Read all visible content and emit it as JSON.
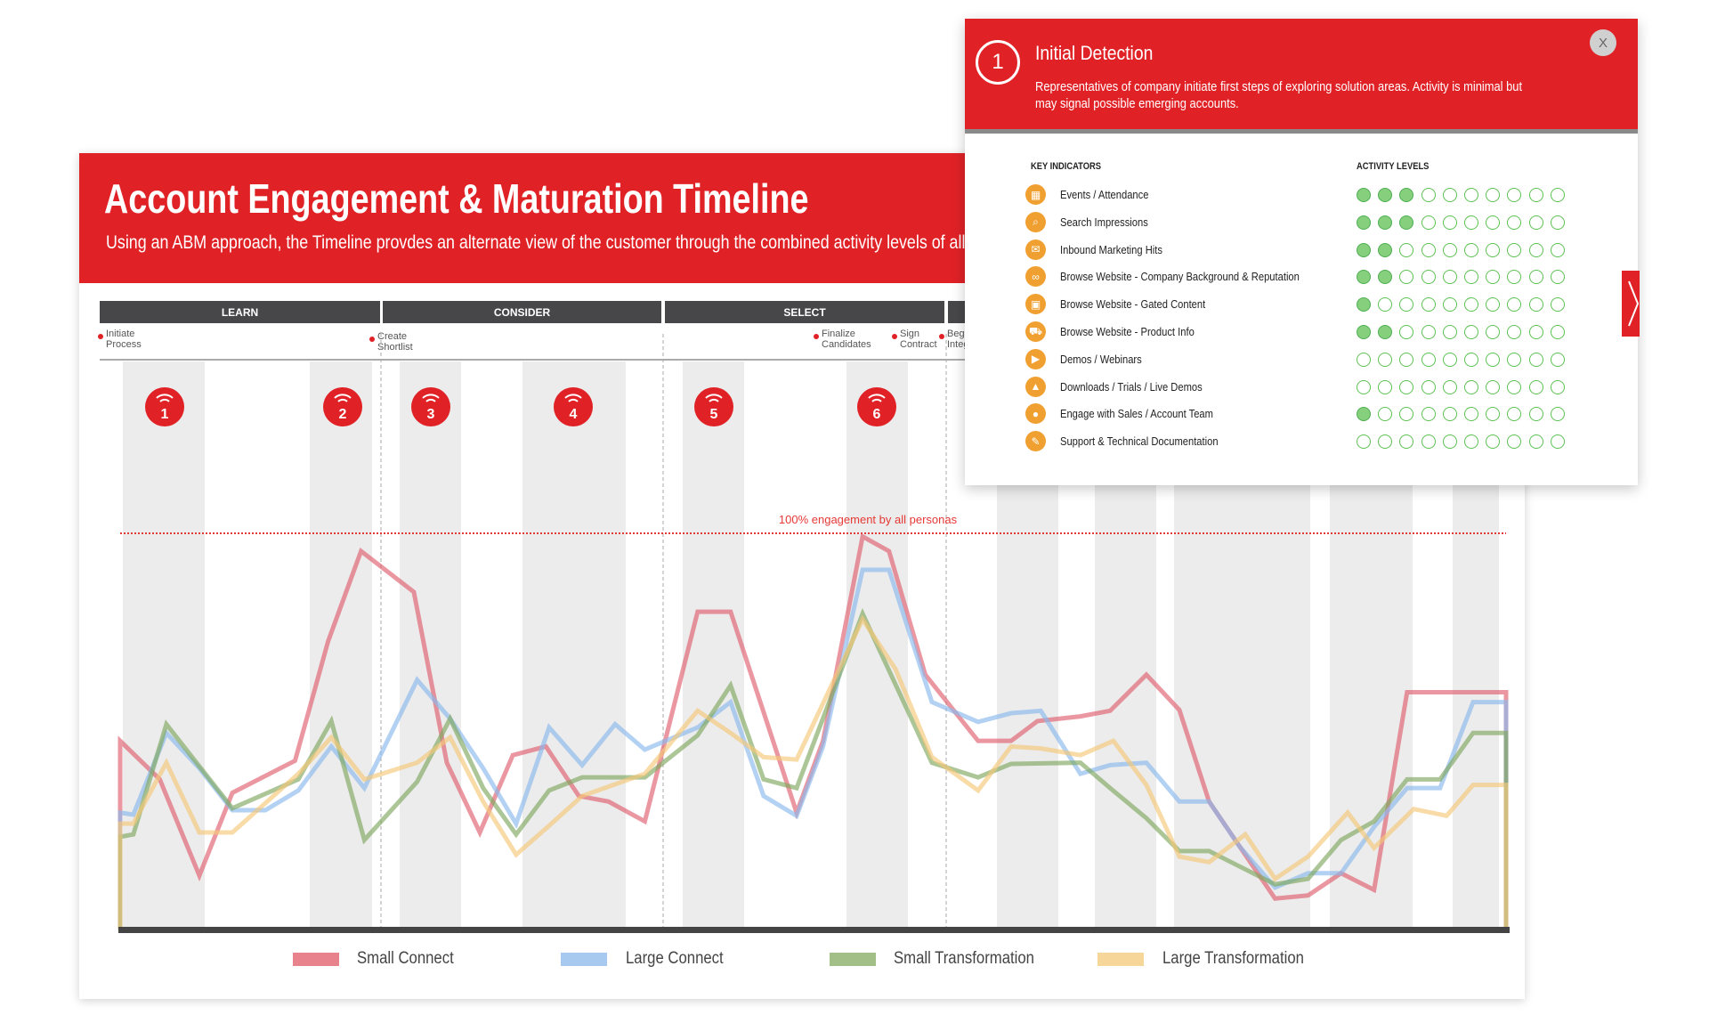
{
  "header": {
    "title": "Account Engagement & Maturation Timeline",
    "subtitle": "Using an ABM approach, the Timeline provdes an alternate view of the customer through the combined activity levels of all te"
  },
  "phases": [
    "LEARN",
    "CONSIDER",
    "SELECT",
    ""
  ],
  "milestones": [
    {
      "line1": "Initiate",
      "line2": "Process"
    },
    {
      "line1": "Create",
      "line2": "Shortlist"
    },
    {
      "line1": "Finalize",
      "line2": "Candidates"
    },
    {
      "line1": "Sign",
      "line2": "Contract"
    },
    {
      "line1": "Begin",
      "line2": "Integ"
    }
  ],
  "markers": [
    "1",
    "2",
    "3",
    "4",
    "5",
    "6"
  ],
  "chart_data": {
    "type": "line",
    "title": "",
    "xlabel": "",
    "ylabel": "",
    "ylim": [
      0,
      100
    ],
    "reference_line": {
      "value": 100,
      "label": "100% engagement by all personas",
      "color": "#e53935"
    },
    "grid": false,
    "legend": "bottom",
    "series": [
      {
        "name": "Small Connect",
        "color": "#e0606e",
        "points": [
          [
            0,
            0
          ],
          [
            0,
            47.6
          ],
          [
            1.2,
            37.9
          ],
          [
            2.4,
            13.6
          ],
          [
            3.4,
            34.5
          ],
          [
            5.3,
            42.6
          ],
          [
            6.3,
            72.7
          ],
          [
            7.3,
            95.5
          ],
          [
            8.9,
            85.2
          ],
          [
            9.9,
            42.1
          ],
          [
            10.9,
            24.5
          ],
          [
            11.9,
            44
          ],
          [
            12.9,
            46.2
          ],
          [
            13.9,
            33.7
          ],
          [
            14.8,
            32.3
          ],
          [
            15.9,
            27.3
          ],
          [
            17.5,
            80.2
          ],
          [
            18.5,
            80.2
          ],
          [
            20.5,
            29.5
          ],
          [
            21.3,
            47.6
          ],
          [
            22.5,
            99.2
          ],
          [
            23.3,
            95.5
          ],
          [
            24.4,
            64.3
          ],
          [
            26,
            47.6
          ],
          [
            27,
            47.6
          ],
          [
            27.8,
            52.6
          ],
          [
            29.1,
            53.8
          ],
          [
            30,
            55.2
          ],
          [
            31.1,
            64.3
          ],
          [
            32.1,
            55.4
          ],
          [
            33,
            32.3
          ],
          [
            35,
            7.8
          ],
          [
            36,
            8.6
          ],
          [
            37,
            14.2
          ],
          [
            38,
            10
          ],
          [
            39,
            59.9
          ],
          [
            42,
            59.9
          ],
          [
            42,
            0
          ]
        ]
      },
      {
        "name": "Large Connect",
        "color": "#8ab8ec",
        "points": [
          [
            0,
            0
          ],
          [
            0,
            29.5
          ],
          [
            0.4,
            29
          ],
          [
            1.4,
            49.6
          ],
          [
            2.4,
            40.7
          ],
          [
            3.4,
            30.1
          ],
          [
            4.4,
            30.1
          ],
          [
            5.4,
            35.1
          ],
          [
            6.4,
            46.2
          ],
          [
            7.4,
            35.7
          ],
          [
            9,
            63
          ],
          [
            10,
            53.2
          ],
          [
            11,
            40.7
          ],
          [
            12,
            26.7
          ],
          [
            13,
            51
          ],
          [
            14,
            41.5
          ],
          [
            15,
            51.8
          ],
          [
            15.9,
            45.4
          ],
          [
            17.5,
            51
          ],
          [
            18.5,
            57.4
          ],
          [
            19.5,
            33.7
          ],
          [
            20.5,
            28.7
          ],
          [
            21.3,
            46.2
          ],
          [
            22.5,
            90.8
          ],
          [
            23.3,
            90.8
          ],
          [
            24.6,
            57.4
          ],
          [
            26,
            52.4
          ],
          [
            27,
            54.6
          ],
          [
            27.9,
            55.2
          ],
          [
            29.1,
            39.3
          ],
          [
            30,
            41.5
          ],
          [
            31.1,
            42.1
          ],
          [
            32.1,
            32.3
          ],
          [
            33,
            32.3
          ],
          [
            33.9,
            21.2
          ],
          [
            35,
            10.6
          ],
          [
            36,
            14.2
          ],
          [
            37,
            14.2
          ],
          [
            38,
            25.9
          ],
          [
            39,
            35.7
          ],
          [
            40,
            35.7
          ],
          [
            41,
            57.4
          ],
          [
            42,
            57.4
          ],
          [
            42,
            0
          ]
        ]
      },
      {
        "name": "Small Transformation",
        "color": "#7fa860",
        "points": [
          [
            0,
            0
          ],
          [
            0,
            23.4
          ],
          [
            0.4,
            24
          ],
          [
            1.4,
            51.8
          ],
          [
            2.4,
            41.2
          ],
          [
            3.4,
            30.6
          ],
          [
            5.4,
            37.9
          ],
          [
            6.4,
            52.6
          ],
          [
            7.4,
            22.6
          ],
          [
            9,
            37.3
          ],
          [
            10,
            53.2
          ],
          [
            11,
            35.7
          ],
          [
            12,
            24
          ],
          [
            13,
            35.1
          ],
          [
            14,
            38.4
          ],
          [
            15.9,
            38.4
          ],
          [
            17.5,
            49
          ],
          [
            18.5,
            61.6
          ],
          [
            19.5,
            37.9
          ],
          [
            20.5,
            35.7
          ],
          [
            22.5,
            79.7
          ],
          [
            24.6,
            42.1
          ],
          [
            26,
            38.4
          ],
          [
            27,
            41.8
          ],
          [
            29.1,
            42.1
          ],
          [
            30,
            35.7
          ],
          [
            31.1,
            28.1
          ],
          [
            32.1,
            19.8
          ],
          [
            33,
            19.8
          ],
          [
            35,
            11.4
          ],
          [
            36,
            12.8
          ],
          [
            37,
            22.6
          ],
          [
            38,
            27.3
          ],
          [
            39,
            37.9
          ],
          [
            40,
            37.9
          ],
          [
            41,
            49.6
          ],
          [
            42,
            49.6
          ],
          [
            42,
            0
          ]
        ]
      },
      {
        "name": "Large Transformation",
        "color": "#f5c878",
        "points": [
          [
            0,
            0
          ],
          [
            0,
            26.7
          ],
          [
            0.4,
            26.7
          ],
          [
            1.4,
            42.1
          ],
          [
            2.4,
            24.5
          ],
          [
            3.4,
            24.5
          ],
          [
            5.4,
            39.3
          ],
          [
            6.4,
            48.5
          ],
          [
            7.4,
            37.9
          ],
          [
            9,
            42.1
          ],
          [
            10,
            48.5
          ],
          [
            11,
            32.3
          ],
          [
            12,
            18.9
          ],
          [
            13,
            26.2
          ],
          [
            14,
            33.7
          ],
          [
            15.9,
            39.3
          ],
          [
            17.5,
            55.2
          ],
          [
            18.5,
            49.6
          ],
          [
            19.5,
            43.5
          ],
          [
            20.5,
            42.9
          ],
          [
            22.5,
            78.3
          ],
          [
            23.5,
            65.7
          ],
          [
            24.6,
            43.5
          ],
          [
            26,
            35.1
          ],
          [
            27,
            46.2
          ],
          [
            27.9,
            45.7
          ],
          [
            29.1,
            44
          ],
          [
            30.1,
            47.6
          ],
          [
            31.1,
            36.5
          ],
          [
            32.1,
            18.4
          ],
          [
            33,
            17
          ],
          [
            34.1,
            24
          ],
          [
            35,
            12.8
          ],
          [
            36,
            18.4
          ],
          [
            37.2,
            29.5
          ],
          [
            38,
            20.6
          ],
          [
            39.2,
            30.4
          ],
          [
            40.2,
            28.7
          ],
          [
            41,
            36.5
          ],
          [
            42,
            36.5
          ],
          [
            42,
            0
          ]
        ]
      }
    ]
  },
  "panel": {
    "number": "1",
    "title": "Initial Detection",
    "description": "Representatives of company initiate first steps of exploring solution areas. Activity is minimal but may signal possible emerging accounts.",
    "close_label": "X",
    "col_indicators": "KEY INDICATORS",
    "col_levels": "ACTIVITY LEVELS",
    "max_level": 10,
    "rows": [
      {
        "label": "Events / Attendance",
        "icon": "calendar-icon",
        "glyph": "▦",
        "level": 3
      },
      {
        "label": "Search Impressions",
        "icon": "search-icon",
        "glyph": "⌕",
        "level": 3
      },
      {
        "label": "Inbound Marketing Hits",
        "icon": "envelope-icon",
        "glyph": "✉",
        "level": 2
      },
      {
        "label": "Browse Website - Company Background & Reputation",
        "icon": "glasses-icon",
        "glyph": "∞",
        "level": 2
      },
      {
        "label": "Browse Website - Gated Content",
        "icon": "lock-icon",
        "glyph": "▣",
        "level": 1
      },
      {
        "label": "Browse Website - Product Info",
        "icon": "cart-icon",
        "glyph": "⛟",
        "level": 2
      },
      {
        "label": "Demos / Webinars",
        "icon": "presentation-icon",
        "glyph": "▶",
        "level": 0
      },
      {
        "label": "Downloads / Trials / Live Demos",
        "icon": "flask-icon",
        "glyph": "▲",
        "level": 0
      },
      {
        "label": "Engage with Sales / Account Team",
        "icon": "chat-bubble-icon",
        "glyph": "●",
        "level": 1
      },
      {
        "label": "Support & Technical Documentation",
        "icon": "wrench-icon",
        "glyph": "✎",
        "level": 0
      }
    ]
  }
}
